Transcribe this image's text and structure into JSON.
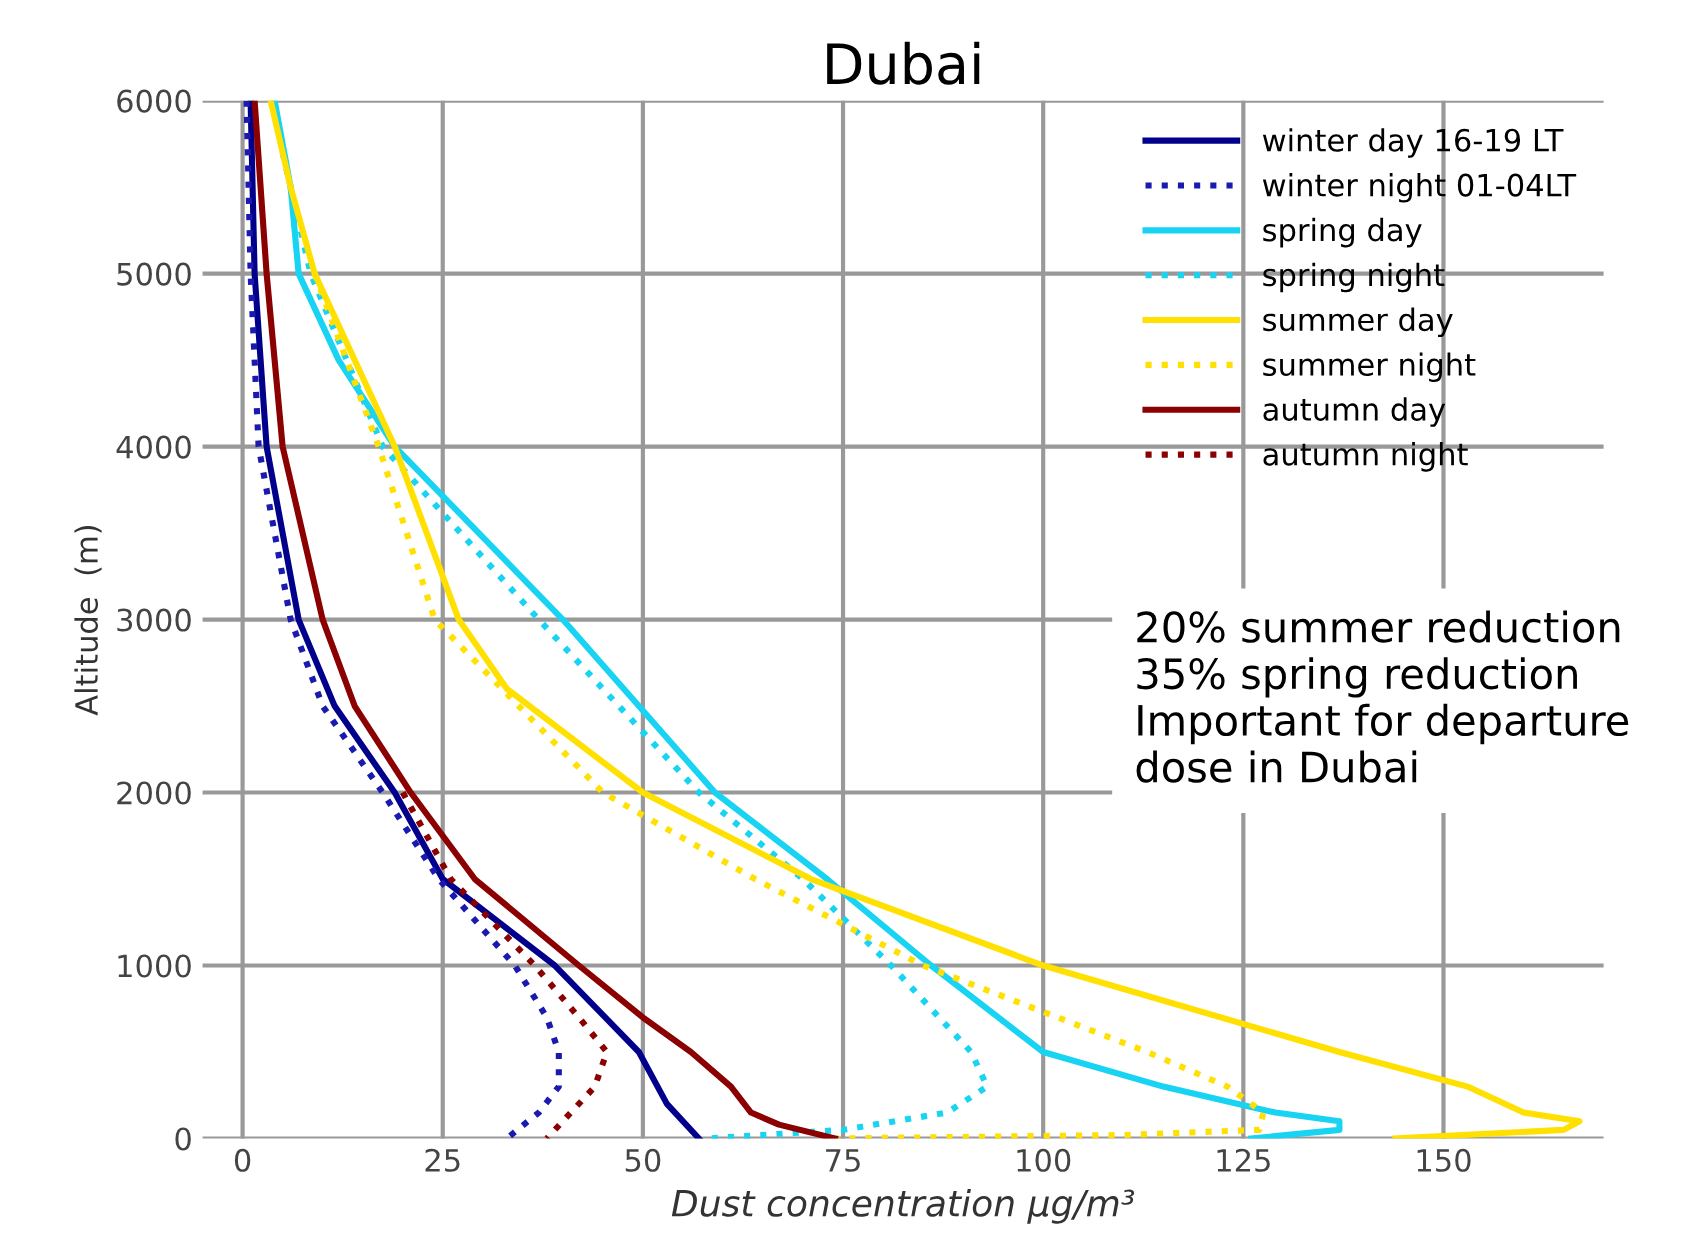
{
  "chart_data": {
    "type": "line",
    "title": "Dubai",
    "xlabel": "Dust concentration μg/m³",
    "ylabel": "Altitude  (m)",
    "xlim": [
      -5,
      170
    ],
    "ylim": [
      0,
      6000
    ],
    "xticks": [
      0,
      25,
      50,
      75,
      100,
      125,
      150
    ],
    "yticks": [
      0,
      1000,
      2000,
      3000,
      4000,
      5000,
      6000
    ],
    "grid": true,
    "legend": "top right",
    "annotations": [
      "20% summer reduction\n35% spring reduction\nImportant for departure\ndose in Dubai"
    ],
    "series": [
      {
        "name": "winter day 16-19 LT",
        "color": "#00008b",
        "line_style": "solid",
        "values": [
          6000,
          5000,
          4000,
          3000,
          2500,
          2000,
          1500,
          1000,
          500,
          200,
          0
        ],
        "x": [
          1,
          1.5,
          3,
          7,
          11.5,
          19,
          25,
          39,
          49.5,
          53,
          57
        ]
      },
      {
        "name": "winter night 01-04LT",
        "color": "#1a1ab0",
        "line_style": "dotted",
        "values": [
          6000,
          5000,
          4000,
          3000,
          2500,
          2000,
          1500,
          1000,
          700,
          500,
          300,
          150,
          0
        ],
        "x": [
          0.5,
          1,
          2,
          6,
          10,
          17.5,
          24.5,
          34,
          38,
          39.5,
          39.5,
          37,
          33
        ]
      },
      {
        "name": "spring day",
        "color": "#19d3f3",
        "line_style": "solid",
        "values": [
          6000,
          5500,
          5000,
          4500,
          4000,
          3000,
          2000,
          1500,
          1000,
          500,
          300,
          150,
          100,
          50,
          0
        ],
        "x": [
          4,
          6,
          7,
          12,
          19,
          40,
          59,
          73,
          86,
          100,
          115,
          129,
          137,
          137,
          126
        ]
      },
      {
        "name": "spring night",
        "color": "#19d3f3",
        "line_style": "dotted",
        "values": [
          5700,
          5000,
          4000,
          3000,
          2000,
          1500,
          1000,
          500,
          300,
          150,
          50,
          0
        ],
        "x": [
          5,
          8.5,
          17.5,
          37,
          57,
          70,
          81,
          91,
          93,
          88,
          75,
          58
        ]
      },
      {
        "name": "summer day",
        "color": "#ffe000",
        "line_style": "solid",
        "values": [
          6000,
          5500,
          5000,
          4000,
          3000,
          2600,
          2000,
          1500,
          1000,
          500,
          300,
          150,
          100,
          50,
          0
        ],
        "x": [
          3.5,
          6,
          9,
          19,
          27,
          33,
          50,
          71,
          100,
          137,
          153,
          160,
          167,
          165,
          144
        ]
      },
      {
        "name": "summer night",
        "color": "#ffe000",
        "line_style": "dotted",
        "values": [
          5000,
          4000,
          3000,
          2000,
          1500,
          1000,
          500,
          300,
          150,
          50,
          20,
          0
        ],
        "x": [
          9,
          17,
          24,
          45,
          64,
          85,
          113,
          123,
          127.5,
          127,
          110,
          74
        ]
      },
      {
        "name": "autumn day",
        "color": "#8b0000",
        "line_style": "solid",
        "values": [
          6000,
          5000,
          4000,
          3000,
          2500,
          2000,
          1500,
          1000,
          700,
          500,
          300,
          150,
          80,
          0
        ],
        "x": [
          1.5,
          3,
          5,
          10,
          14,
          21,
          29,
          42,
          50,
          56,
          61,
          63.5,
          67,
          74
        ]
      },
      {
        "name": "autumn night",
        "color": "#8b0000",
        "line_style": "dotted",
        "values": [
          2000,
          1500,
          1000,
          700,
          500,
          300,
          150,
          0
        ],
        "x": [
          20,
          26,
          36.5,
          42,
          45.5,
          44,
          41,
          38
        ]
      }
    ]
  }
}
